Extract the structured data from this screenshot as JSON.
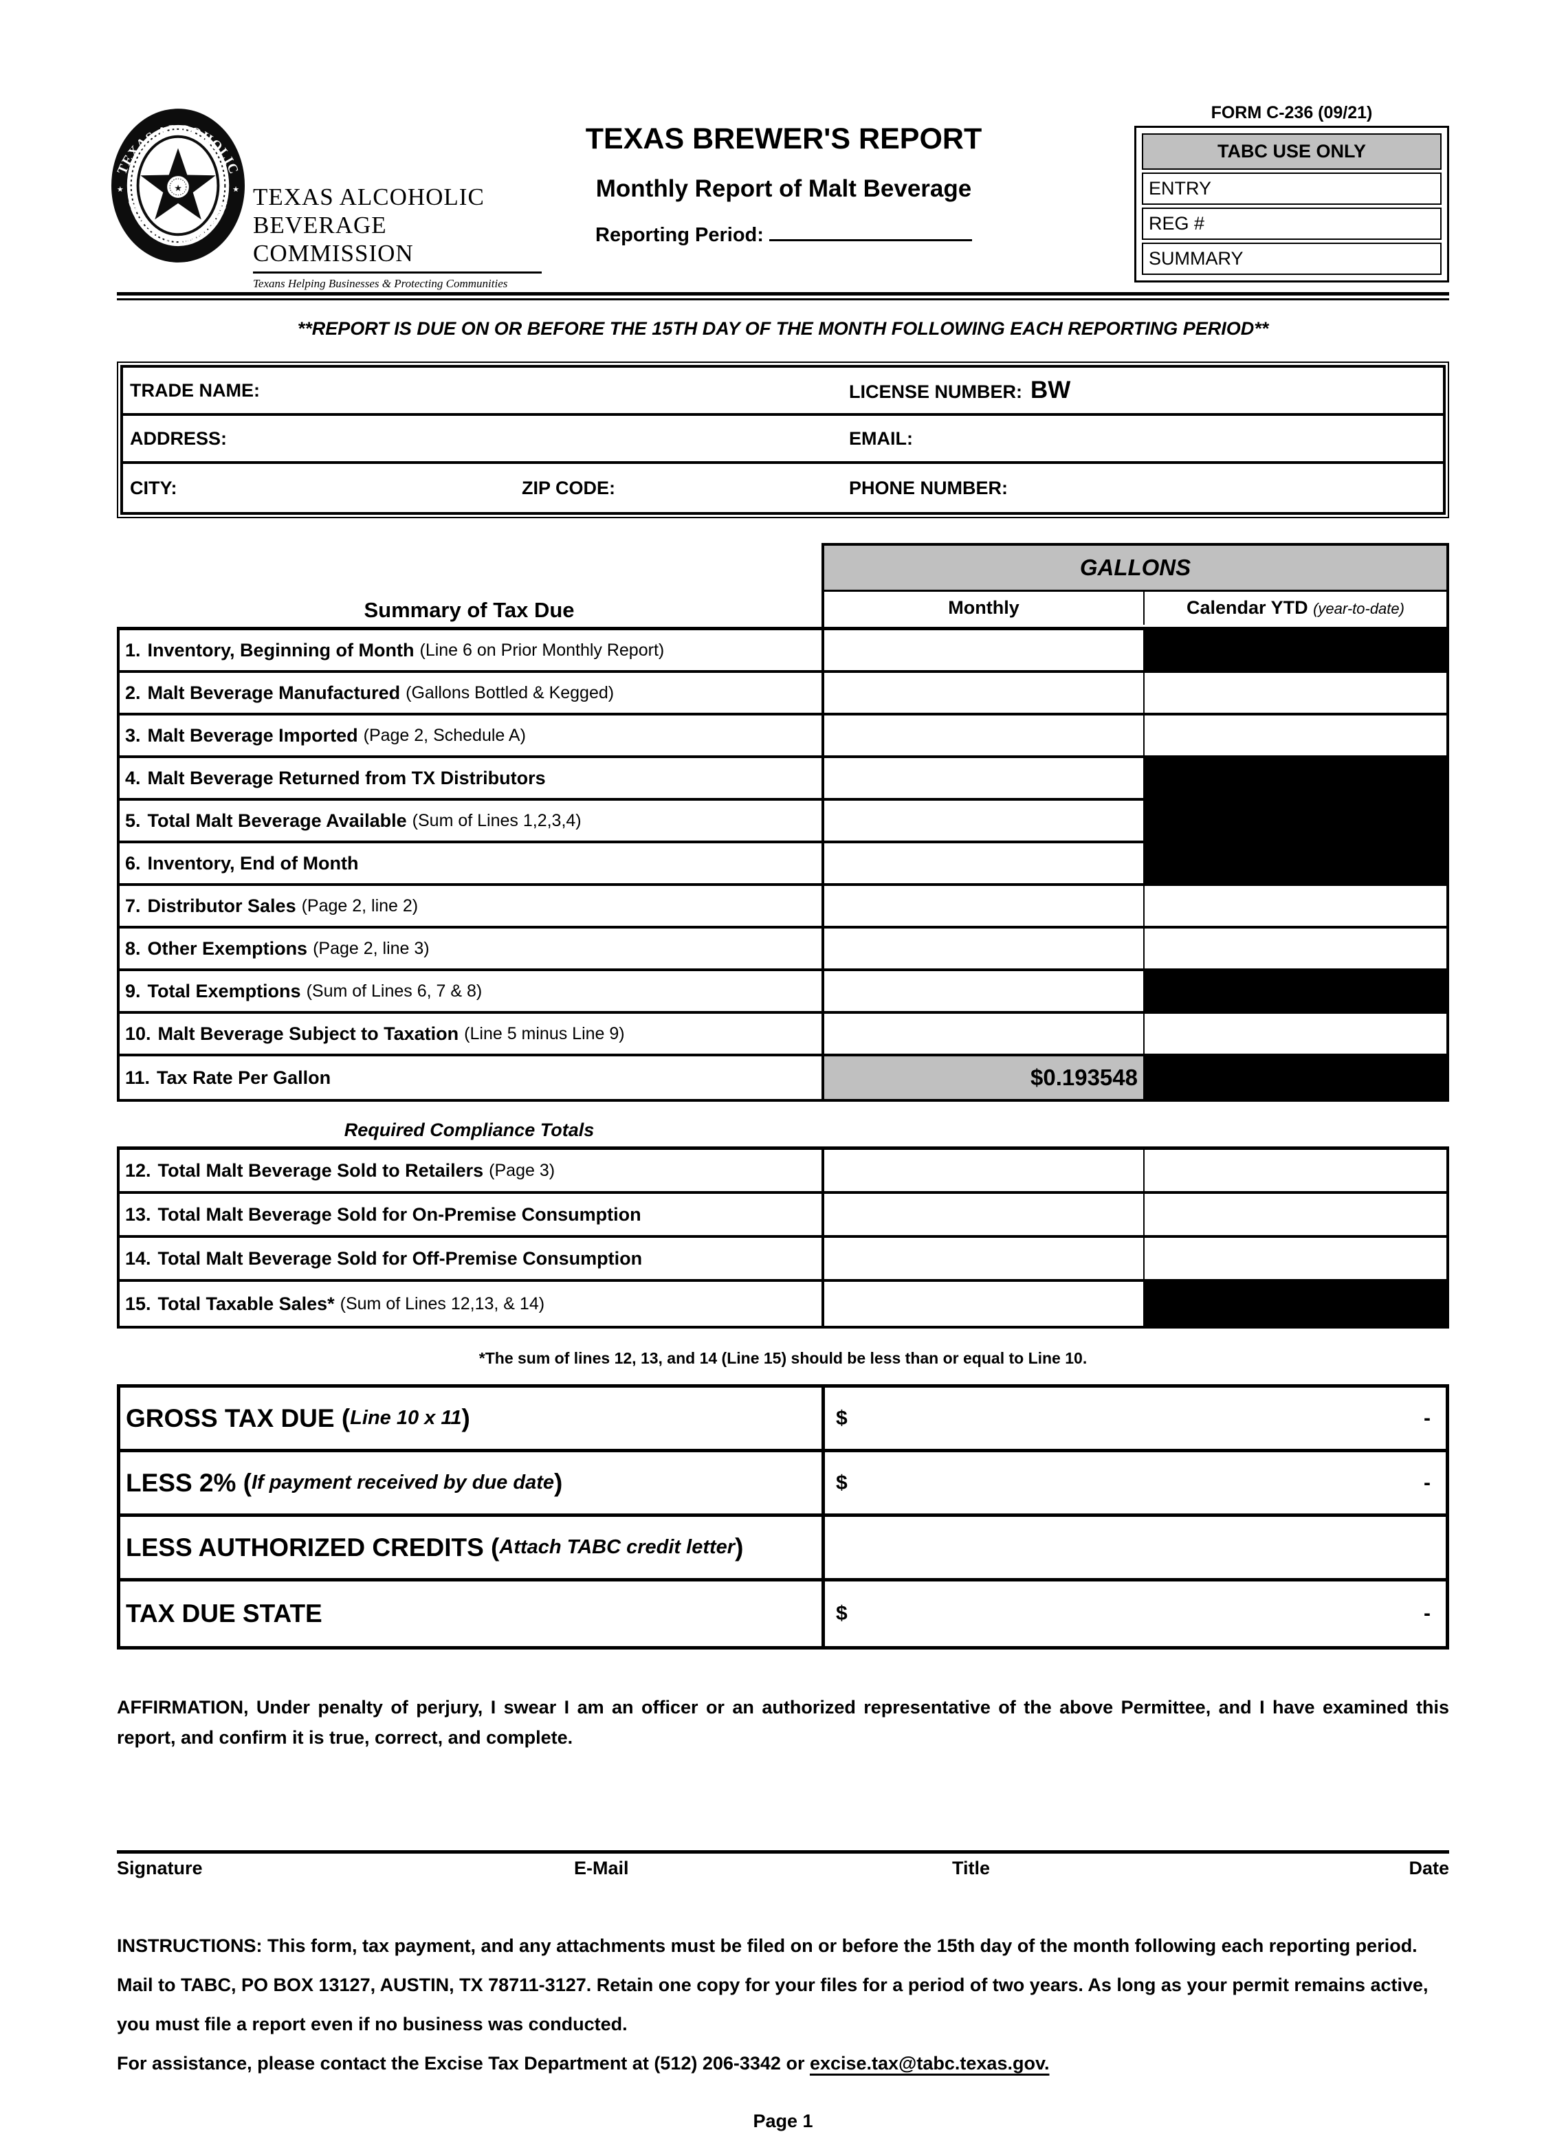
{
  "form": {
    "number": "FORM C-236 (09/21)",
    "page_label": "Page 1"
  },
  "logo": {
    "org_line1": "TEXAS ALCOHOLIC",
    "org_line2": "BEVERAGE COMMISSION",
    "tagline": "Texans Helping Businesses & Protecting Communities",
    "seal_top": "TEXAS ALCOHOLIC",
    "seal_bottom": "BEVERAGE COMMISSION",
    "seal_star": "★"
  },
  "header": {
    "title": "TEXAS BREWER'S REPORT",
    "subtitle": "Monthly Report of Malt Beverage",
    "reporting_label": "Reporting Period:",
    "due_notice": "**REPORT IS DUE ON OR BEFORE THE 15TH DAY OF THE MONTH FOLLOWING EACH REPORTING PERIOD**"
  },
  "tabc_box": {
    "header": "TABC USE ONLY",
    "rows": [
      "ENTRY",
      "REG #",
      "SUMMARY"
    ]
  },
  "permittee": {
    "trade_name_label": "TRADE NAME:",
    "license_label": "LICENSE NUMBER:",
    "license_value": "BW",
    "address_label": "ADDRESS:",
    "email_label": "EMAIL:",
    "city_label": "CITY:",
    "zip_label": "ZIP CODE:",
    "phone_label": "PHONE NUMBER:"
  },
  "summary_table": {
    "heading": "Summary of Tax Due",
    "gallons_header": "GALLONS",
    "monthly_header": "Monthly",
    "ytd_header": "Calendar YTD",
    "ytd_note": "(year-to-date)",
    "rows": [
      {
        "num": "1.",
        "label": "Inventory, Beginning of Month",
        "note": "(Line 6 on Prior Monthly Report)",
        "monthly_value": "",
        "monthly_gray": false,
        "ytd_black": true
      },
      {
        "num": "2.",
        "label": "Malt Beverage Manufactured",
        "note": "(Gallons Bottled & Kegged)",
        "monthly_value": "",
        "monthly_gray": false,
        "ytd_black": false
      },
      {
        "num": "3.",
        "label": "Malt Beverage Imported",
        "note": "(Page 2, Schedule A)",
        "monthly_value": "",
        "monthly_gray": false,
        "ytd_black": false
      },
      {
        "num": "4.",
        "label": "Malt Beverage Returned from TX Distributors",
        "note": "",
        "monthly_value": "",
        "monthly_gray": false,
        "ytd_black": true
      },
      {
        "num": "5.",
        "label": "Total Malt Beverage Available",
        "note": "(Sum of Lines 1,2,3,4)",
        "monthly_value": "",
        "monthly_gray": false,
        "ytd_black": true
      },
      {
        "num": "6.",
        "label": "Inventory, End of Month",
        "note": "",
        "monthly_value": "",
        "monthly_gray": false,
        "ytd_black": true
      },
      {
        "num": "7.",
        "label": "Distributor Sales",
        "note": "(Page 2, line 2)",
        "monthly_value": "",
        "monthly_gray": false,
        "ytd_black": false
      },
      {
        "num": "8.",
        "label": "Other Exemptions",
        "note": "(Page 2, line 3)",
        "monthly_value": "",
        "monthly_gray": false,
        "ytd_black": false
      },
      {
        "num": "9.",
        "label": "Total Exemptions",
        "note": "(Sum of Lines 6, 7 & 8)",
        "monthly_value": "",
        "monthly_gray": false,
        "ytd_black": true
      },
      {
        "num": "10.",
        "label": "Malt Beverage Subject to Taxation",
        "note": "(Line 5 minus Line 9)",
        "monthly_value": "",
        "monthly_gray": false,
        "ytd_black": false
      },
      {
        "num": "11.",
        "label": "Tax Rate Per Gallon",
        "note": "",
        "monthly_value": "$0.193548",
        "monthly_gray": true,
        "ytd_black": true
      }
    ]
  },
  "compliance": {
    "heading": "Required Compliance Totals",
    "rows": [
      {
        "num": "12.",
        "label": "Total Malt Beverage Sold to Retailers",
        "note": "(Page 3)",
        "monthly_value": "",
        "monthly_gray": false,
        "ytd_black": false
      },
      {
        "num": "13.",
        "label": "Total Malt Beverage Sold for On-Premise Consumption",
        "note": "",
        "monthly_value": "",
        "monthly_gray": false,
        "ytd_black": false
      },
      {
        "num": "14.",
        "label": "Total Malt Beverage Sold for Off-Premise Consumption",
        "note": "",
        "monthly_value": "",
        "monthly_gray": false,
        "ytd_black": false
      },
      {
        "num": "15.",
        "label": "Total Taxable Sales*",
        "note": "(Sum of Lines 12,13, & 14)",
        "monthly_value": "",
        "monthly_gray": false,
        "ytd_black": true
      }
    ],
    "footnote": "*The sum of lines 12, 13, and 14 (Line 15) should be less than or equal to Line 10."
  },
  "totals": {
    "rows": [
      {
        "label": "GROSS TAX DUE (",
        "paren": "Line 10 x 11",
        "close": ")",
        "currency": "$",
        "value": "-"
      },
      {
        "label": "LESS 2% (",
        "paren": "If payment received by due date",
        "close": ")",
        "currency": "$",
        "value": "-"
      },
      {
        "label": "LESS AUTHORIZED CREDITS (",
        "paren": "Attach TABC credit letter",
        "close": ")",
        "currency": "",
        "value": ""
      },
      {
        "label": "TAX DUE STATE",
        "paren": "",
        "close": "",
        "currency": "$",
        "value": "-"
      }
    ]
  },
  "affirmation": "AFFIRMATION,  Under penalty of perjury, I swear I am an officer or an authorized representative of the above Permittee, and I have examined this report, and confirm it is true, correct, and complete.",
  "signature": {
    "labels": [
      "Signature",
      "E-Mail",
      "Title",
      "Date"
    ]
  },
  "instructions": {
    "line1": "INSTRUCTIONS:  This form, tax payment, and any attachments must be filed on or before the 15th day of the month following each reporting period.",
    "line2": "Mail to TABC, PO BOX 13127, AUSTIN, TX  78711-3127.  Retain one copy for your files for a period of two years.  As long as your permit remains active,",
    "line3": "you must file a report even if no business was conducted.",
    "line4_prefix": "For assistance, please contact the Excise Tax Department at (512) 206-3342 or ",
    "email_link": "excise.tax@tabc.texas.gov."
  },
  "colors": {
    "gray_fill": "#c0c0c0",
    "black": "#000000"
  }
}
